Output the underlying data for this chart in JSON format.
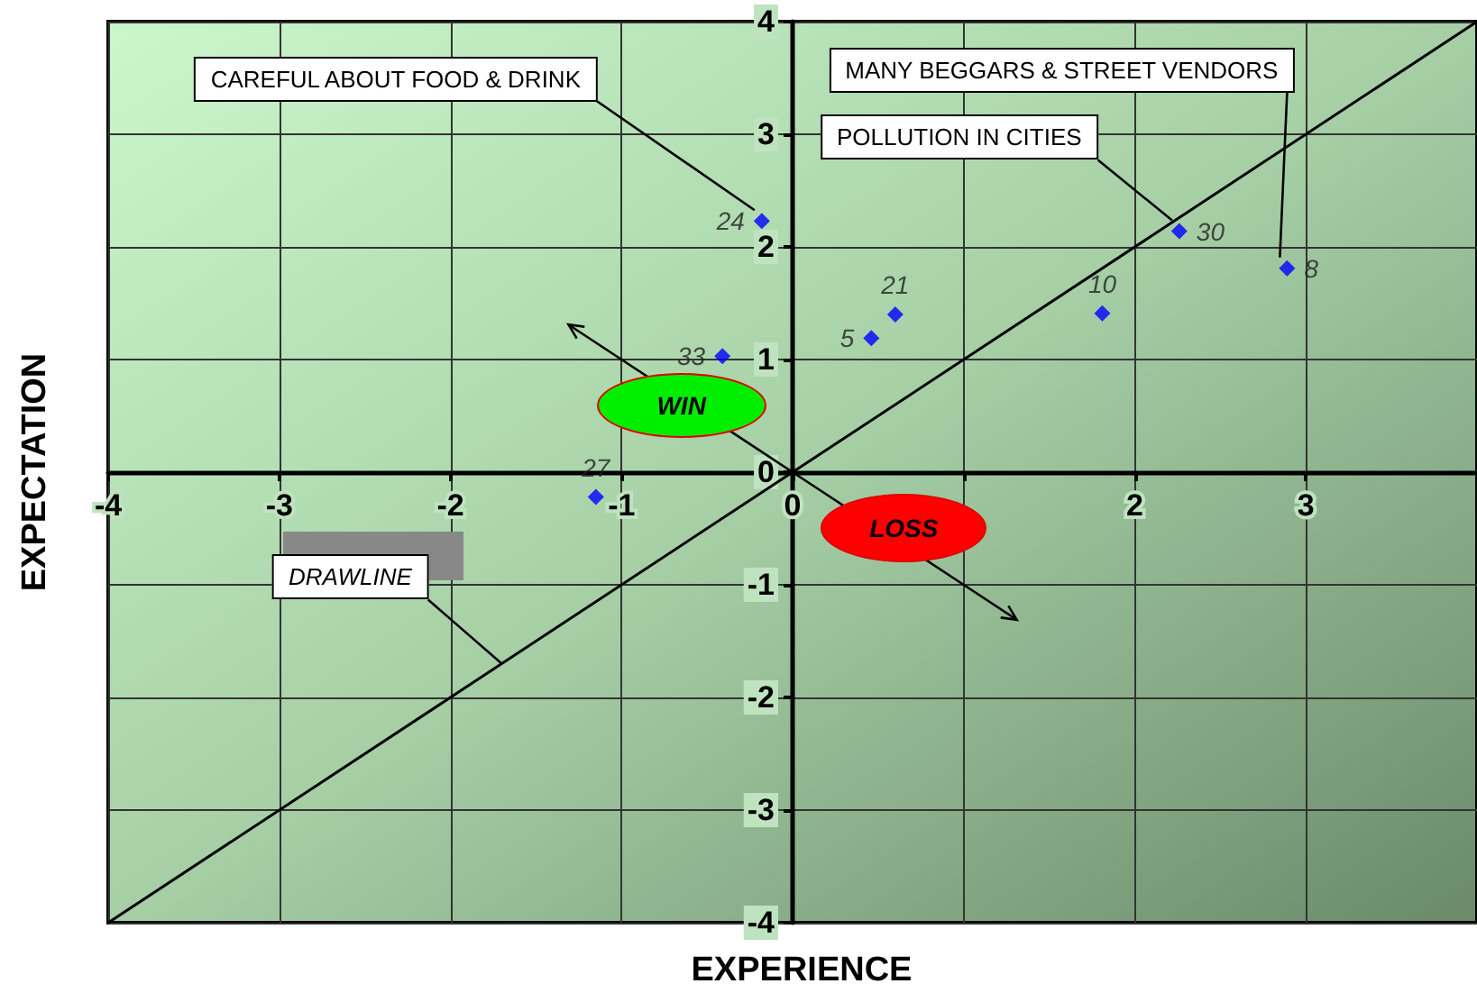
{
  "chart_data": {
    "type": "scatter",
    "xlabel": "EXPERIENCE",
    "ylabel": "EXPECTATION",
    "xlim": [
      -4,
      4
    ],
    "ylim": [
      -4,
      4
    ],
    "xticks": [
      -4,
      -3,
      -2,
      -1,
      0,
      {
        "value": 1,
        "label": null
      },
      2,
      3
    ],
    "yticks": [
      -4,
      -3,
      -2,
      -1,
      0,
      1,
      2,
      3,
      4
    ],
    "grid": true,
    "marker": "diamond",
    "series": [
      {
        "name": "24",
        "color": "#0000ff",
        "x": [
          -0.18
        ],
        "values": [
          2.23
        ]
      },
      {
        "name": "33",
        "color": "#0000ff",
        "x": [
          -0.41
        ],
        "values": [
          1.03
        ]
      },
      {
        "name": "5",
        "color": "#0000ff",
        "x": [
          0.46
        ],
        "values": [
          1.19
        ]
      },
      {
        "name": "21",
        "color": "#0000ff",
        "x": [
          0.6
        ],
        "values": [
          1.4
        ]
      },
      {
        "name": "10",
        "color": "#0000ff",
        "x": [
          1.81
        ],
        "values": [
          1.41
        ]
      },
      {
        "name": "30",
        "color": "#0000ff",
        "x": [
          2.26
        ],
        "values": [
          2.14
        ]
      },
      {
        "name": "8",
        "color": "#0000ff",
        "x": [
          2.89
        ],
        "values": [
          1.81
        ]
      },
      {
        "name": "27",
        "color": "#0000ff",
        "x": [
          -1.15
        ],
        "values": [
          -0.22
        ]
      },
      {
        "type": "line",
        "color": "#000000",
        "x": [
          -4,
          4
        ],
        "values": [
          -4,
          4
        ],
        "marker": "none",
        "line_style": "solid"
      }
    ],
    "annotations": [
      {
        "text": "CAREFUL ABOUT FOOD & DRINK",
        "x": -0.18,
        "y": 2.23
      },
      {
        "text": "MANY BEGGARS & STREET VENDORS",
        "x": 2.89,
        "y": 1.81
      },
      {
        "text": "POLLUTION IN CITIES",
        "x": 2.26,
        "y": 2.14
      },
      {
        "text": "DRAWLINE",
        "x": -1.7,
        "y": -1.7
      },
      "WIN",
      "LOSS"
    ]
  }
}
